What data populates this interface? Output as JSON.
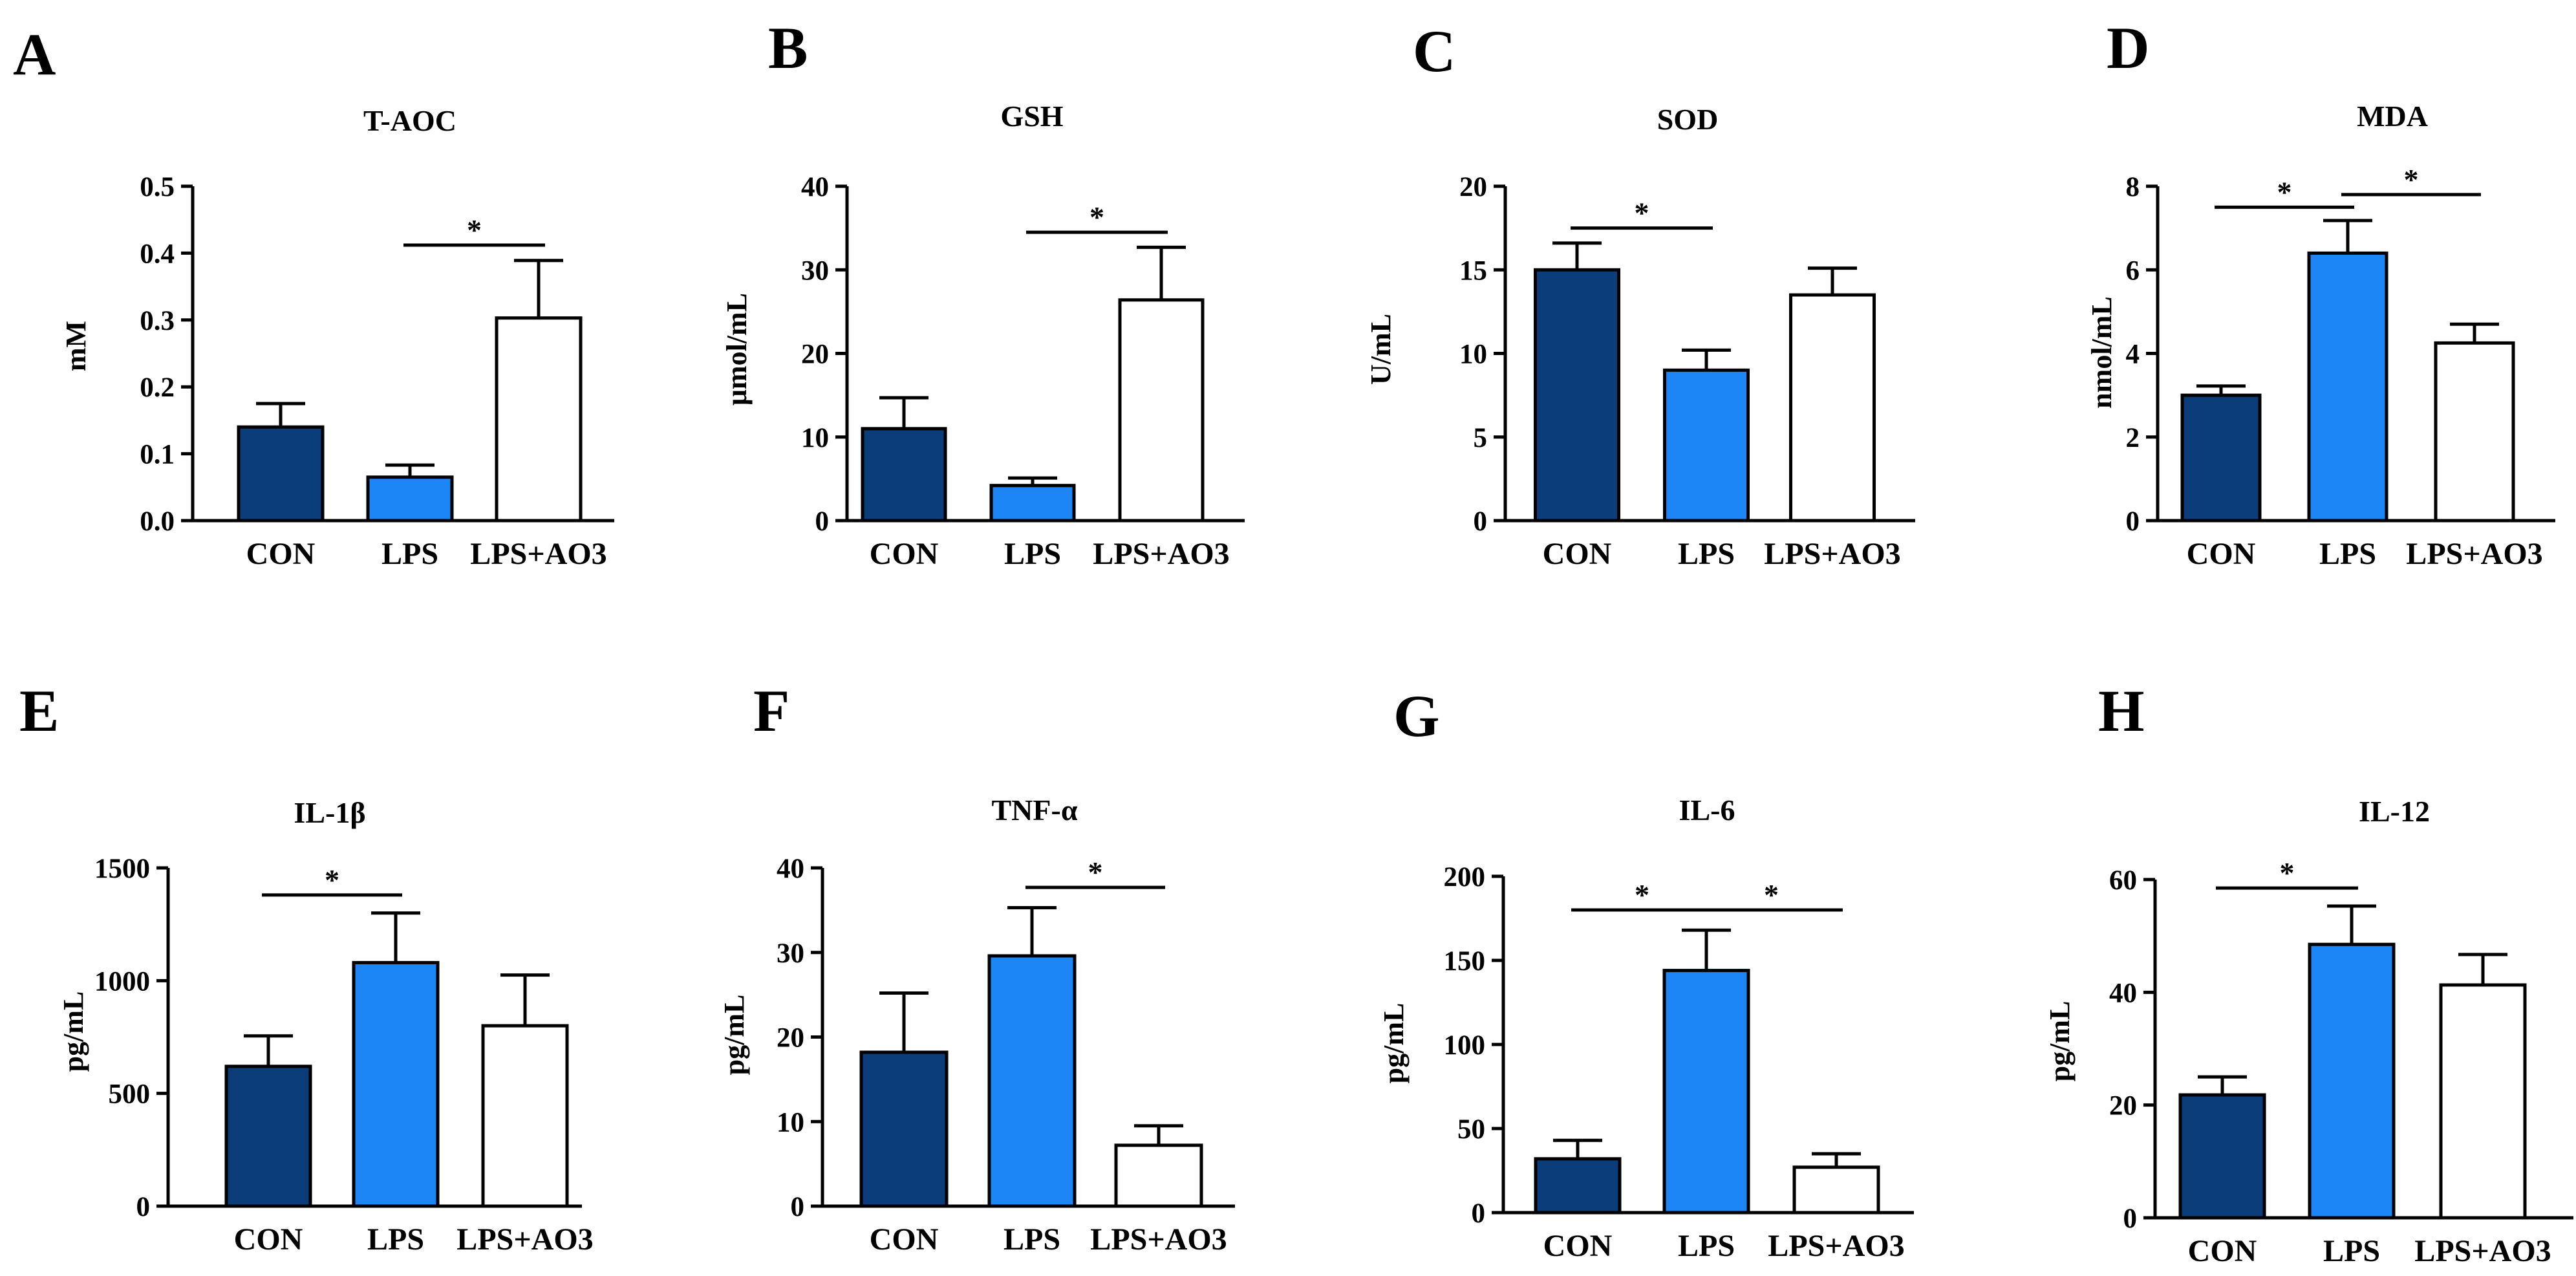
{
  "colors": {
    "CON": "#0a3d7a",
    "LPS": "#1c86f6",
    "LPS+AO3": "#ffffff",
    "stroke": "#000000"
  },
  "chart_data": [
    {
      "panel": "A",
      "type": "bar",
      "title": "T-AOC",
      "ylabel": "mM",
      "ylim": [
        0,
        0.5
      ],
      "yticks": [
        "0.0",
        "0.1",
        "0.2",
        "0.3",
        "0.4",
        "0.5"
      ],
      "ytick_values": [
        0,
        0.1,
        0.2,
        0.3,
        0.4,
        0.5
      ],
      "categories": [
        "CON",
        "LPS",
        "LPS+AO3"
      ],
      "values": [
        0.14,
        0.065,
        0.303
      ],
      "errors": [
        0.035,
        0.018,
        0.086
      ],
      "significance": [
        {
          "from": 1,
          "to": 2,
          "label": "*",
          "y": 0.412
        }
      ]
    },
    {
      "panel": "B",
      "type": "bar",
      "title": "GSH",
      "ylabel": "μmol/mL",
      "ylim": [
        0,
        40
      ],
      "yticks": [
        "0",
        "10",
        "20",
        "30",
        "40"
      ],
      "ytick_values": [
        0,
        10,
        20,
        30,
        40
      ],
      "categories": [
        "CON",
        "LPS",
        "LPS+AO3"
      ],
      "values": [
        11.0,
        4.2,
        26.4
      ],
      "errors": [
        3.7,
        0.9,
        6.3
      ],
      "significance": [
        {
          "from": 1,
          "to": 2,
          "label": "*",
          "y": 34.5
        }
      ]
    },
    {
      "panel": "C",
      "type": "bar",
      "title": "SOD",
      "ylabel": "U/mL",
      "ylim": [
        0,
        20
      ],
      "yticks": [
        "0",
        "5",
        "10",
        "15",
        "20"
      ],
      "ytick_values": [
        0,
        5,
        10,
        15,
        20
      ],
      "categories": [
        "CON",
        "LPS",
        "LPS+AO3"
      ],
      "values": [
        15.0,
        9.0,
        13.5
      ],
      "errors": [
        1.6,
        1.2,
        1.6
      ],
      "significance": [
        {
          "from": 0,
          "to": 1,
          "label": "*",
          "y": 17.5
        }
      ]
    },
    {
      "panel": "D",
      "type": "bar",
      "title": "MDA",
      "ylabel": "nmol/mL",
      "ylim": [
        0,
        8
      ],
      "yticks": [
        "0",
        "2",
        "4",
        "6",
        "8"
      ],
      "ytick_values": [
        0,
        2,
        4,
        6,
        8
      ],
      "categories": [
        "CON",
        "LPS",
        "LPS+AO3"
      ],
      "values": [
        3.0,
        6.4,
        4.25
      ],
      "errors": [
        0.22,
        0.78,
        0.45
      ],
      "significance": [
        {
          "from": 0,
          "to": 1,
          "label": "*",
          "y": 7.5
        },
        {
          "from": 1,
          "to": 2,
          "label": "*",
          "y": 7.8
        }
      ]
    },
    {
      "panel": "E",
      "type": "bar",
      "title": "IL-1β",
      "ylabel": "pg/mL",
      "ylim": [
        0,
        1500
      ],
      "yticks": [
        "0",
        "500",
        "1000",
        "1500"
      ],
      "ytick_values": [
        0,
        500,
        1000,
        1500
      ],
      "categories": [
        "CON",
        "LPS",
        "LPS+AO3"
      ],
      "values": [
        620,
        1080,
        800
      ],
      "errors": [
        135,
        220,
        225
      ],
      "significance": [
        {
          "from": 0,
          "to": 1,
          "label": "*",
          "y": 1380
        }
      ]
    },
    {
      "panel": "F",
      "type": "bar",
      "title": "TNF-α",
      "ylabel": "pg/mL",
      "ylim": [
        0,
        40
      ],
      "yticks": [
        "0",
        "10",
        "20",
        "30",
        "40"
      ],
      "ytick_values": [
        0,
        10,
        20,
        30,
        40
      ],
      "categories": [
        "CON",
        "LPS",
        "LPS+AO3"
      ],
      "values": [
        18.2,
        29.6,
        7.2
      ],
      "errors": [
        7.0,
        5.7,
        2.3
      ],
      "significance": [
        {
          "from": 1,
          "to": 2,
          "label": "*",
          "y": 37.7
        }
      ]
    },
    {
      "panel": "G",
      "type": "bar",
      "title": "IL-6",
      "ylabel": "pg/mL",
      "ylim": [
        0,
        200
      ],
      "yticks": [
        "0",
        "50",
        "100",
        "150",
        "200"
      ],
      "ytick_values": [
        0,
        50,
        100,
        150,
        200
      ],
      "categories": [
        "CON",
        "LPS",
        "LPS+AO3"
      ],
      "values": [
        32,
        144,
        27
      ],
      "errors": [
        11,
        24,
        8
      ],
      "significance": [
        {
          "from": 0,
          "to": 1,
          "label": "*",
          "y": 180
        },
        {
          "from": 1,
          "to": 2,
          "label": "*",
          "y": 180
        }
      ]
    },
    {
      "panel": "H",
      "type": "bar",
      "title": "IL-12",
      "ylabel": "pg/mL",
      "ylim": [
        0,
        60
      ],
      "yticks": [
        "0",
        "20",
        "40",
        "60"
      ],
      "ytick_values": [
        0,
        20,
        40,
        60
      ],
      "categories": [
        "CON",
        "LPS",
        "LPS+AO3"
      ],
      "values": [
        21.8,
        48.5,
        41.3
      ],
      "errors": [
        3.2,
        6.8,
        5.4
      ],
      "significance": [
        {
          "from": 0,
          "to": 1,
          "label": "*",
          "y": 58.5
        }
      ]
    }
  ]
}
